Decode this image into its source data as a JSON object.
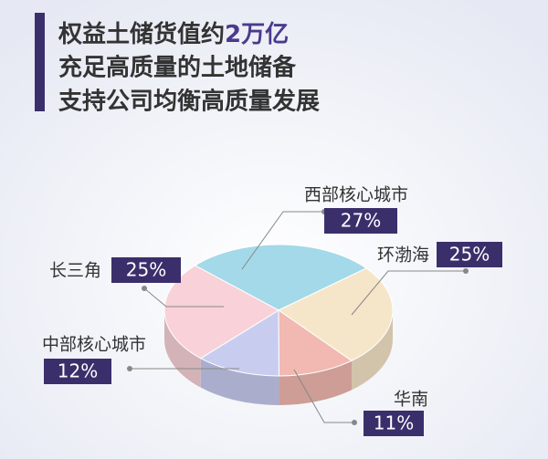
{
  "chart_data": {
    "type": "pie3d",
    "title_lines": [
      [
        "权益土储货值约",
        "2万亿"
      ],
      [
        "充足高质量的土地储备"
      ],
      [
        "支持公司均衡高质量发展"
      ]
    ],
    "categories": [
      "西部核心城市",
      "环渤海",
      "华南",
      "中部核心城市",
      "长三角"
    ],
    "values": [
      27,
      25,
      11,
      12,
      25
    ],
    "value_labels": [
      "27%",
      "25%",
      "11%",
      "12%",
      "25%"
    ],
    "colors": [
      "#a3d9e8",
      "#f6e6c9",
      "#f1b9b1",
      "#c8cdf0",
      "#f8d2d8"
    ]
  }
}
